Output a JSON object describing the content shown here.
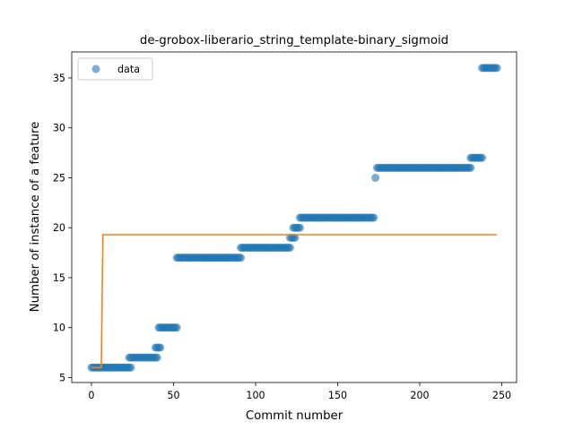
{
  "chart_data": {
    "type": "scatter",
    "title": "de-grobox-liberario_string_template-binary_sigmoid",
    "xlabel": "Commit number",
    "ylabel": "Number of instance of a feature",
    "xlim": [
      -12,
      259
    ],
    "ylim": [
      4.5,
      37.6
    ],
    "xticks": [
      0,
      50,
      100,
      150,
      200,
      250
    ],
    "yticks": [
      5,
      10,
      15,
      20,
      25,
      30,
      35
    ],
    "grid": false,
    "legend": {
      "placement": "top-left",
      "entries": [
        "data"
      ]
    },
    "colors": {
      "data": "#1f77b4",
      "fit": "#ff7f0e"
    },
    "series": [
      {
        "name": "data",
        "kind": "scatter",
        "segments": [
          {
            "x_start": 0,
            "x_end": 24,
            "y": 6
          },
          {
            "x_start": 23,
            "x_end": 40,
            "y": 7
          },
          {
            "x_start": 39,
            "x_end": 42,
            "y": 8
          },
          {
            "x_start": 41,
            "x_end": 52,
            "y": 10
          },
          {
            "x_start": 52,
            "x_end": 91,
            "y": 17
          },
          {
            "x_start": 91,
            "x_end": 121,
            "y": 18
          },
          {
            "x_start": 121,
            "x_end": 124,
            "y": 19
          },
          {
            "x_start": 123,
            "x_end": 127,
            "y": 20
          },
          {
            "x_start": 127,
            "x_end": 172,
            "y": 21
          },
          {
            "x_start": 173,
            "x_end": 173,
            "y": 25
          },
          {
            "x_start": 174,
            "x_end": 231,
            "y": 26
          },
          {
            "x_start": 231,
            "x_end": 238,
            "y": 27
          },
          {
            "x_start": 238,
            "x_end": 247,
            "y": 36
          }
        ]
      },
      {
        "kind": "line",
        "points": [
          [
            0,
            6.0
          ],
          [
            6,
            6.0
          ],
          [
            7,
            19.3
          ],
          [
            247,
            19.3
          ]
        ]
      }
    ]
  }
}
